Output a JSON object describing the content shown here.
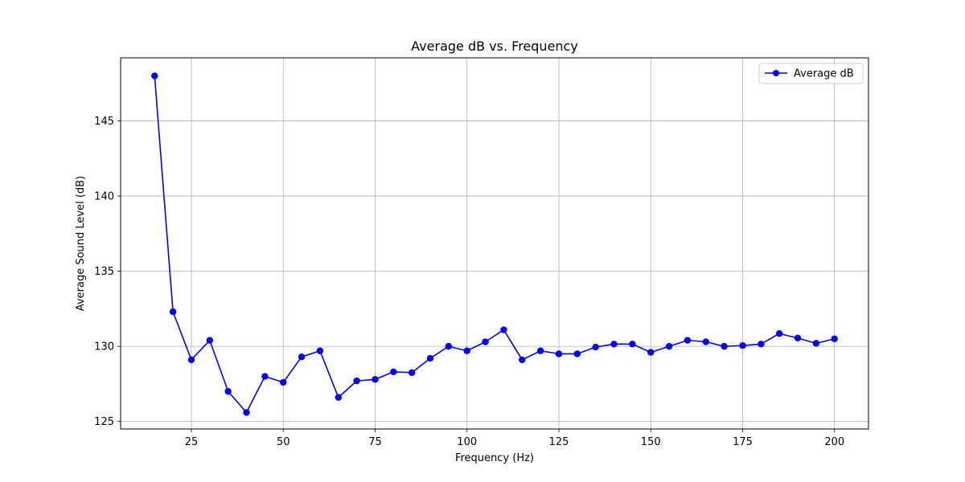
{
  "chart_data": {
    "type": "line",
    "title": "Average dB vs. Frequency",
    "xlabel": "Frequency (Hz)",
    "ylabel": "Average Sound Level (dB)",
    "xlim": [
      5.75,
      209.25
    ],
    "ylim": [
      124.5,
      149.2
    ],
    "xticks": [
      25,
      50,
      75,
      100,
      125,
      150,
      175,
      200
    ],
    "yticks": [
      125,
      130,
      135,
      140,
      145
    ],
    "grid": true,
    "legend_position": "top-right",
    "series": [
      {
        "name": "Average dB",
        "color": "#0000ff",
        "x": [
          15,
          20,
          25,
          30,
          35,
          40,
          45,
          50,
          55,
          60,
          65,
          70,
          75,
          80,
          85,
          90,
          95,
          100,
          105,
          110,
          115,
          120,
          125,
          130,
          135,
          140,
          145,
          150,
          155,
          160,
          165,
          170,
          175,
          180,
          185,
          190,
          195,
          200
        ],
        "y": [
          148.0,
          132.3,
          129.1,
          130.4,
          127.0,
          125.6,
          128.0,
          127.6,
          129.3,
          129.7,
          126.6,
          127.7,
          127.8,
          128.3,
          128.25,
          129.2,
          130.0,
          129.7,
          130.3,
          131.1,
          129.1,
          129.7,
          129.5,
          129.5,
          129.95,
          130.15,
          130.15,
          129.6,
          130.0,
          130.4,
          130.3,
          130.0,
          130.05,
          130.15,
          130.85,
          130.55,
          130.2,
          130.5
        ]
      }
    ]
  }
}
